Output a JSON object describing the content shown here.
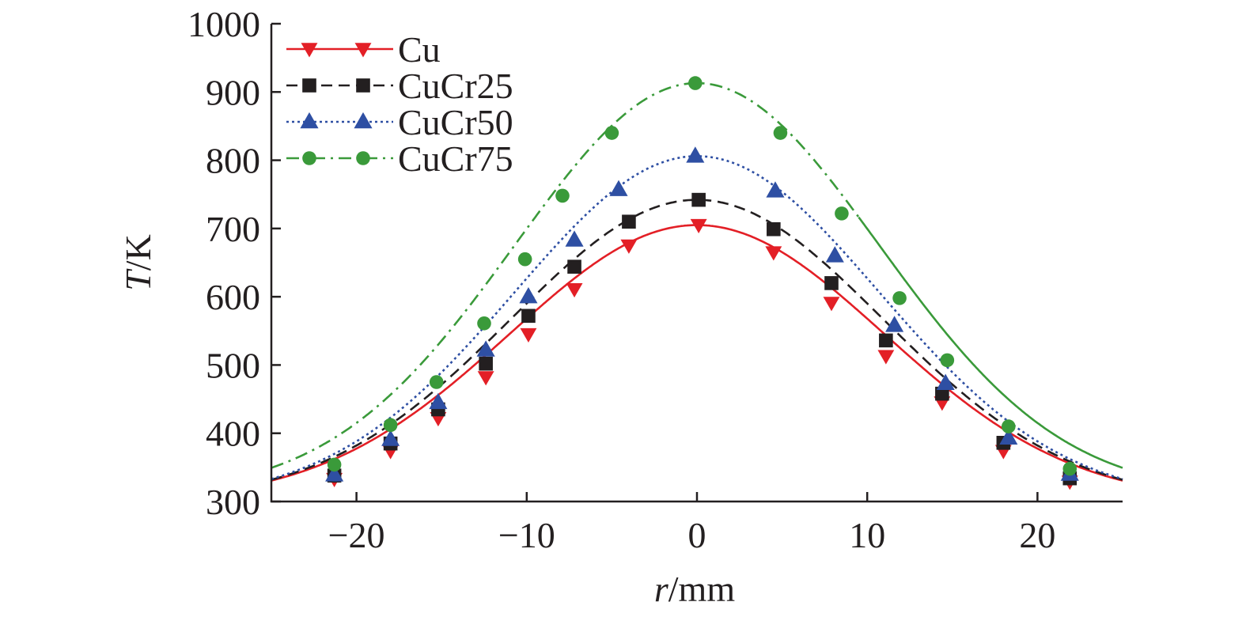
{
  "chart_data": {
    "type": "line",
    "xlabel": {
      "italic": "r",
      "rest": "/mm"
    },
    "ylabel": {
      "italic": "T",
      "rest": "/K"
    },
    "xlim": [
      -25,
      25
    ],
    "ylim": [
      300,
      1000
    ],
    "xticks": [
      -20,
      -10,
      0,
      10,
      20
    ],
    "xtick_labels": [
      "−20",
      "−10",
      "0",
      "10",
      "20"
    ],
    "yticks": [
      300,
      400,
      500,
      600,
      700,
      800,
      900,
      1000
    ],
    "ytick_labels": [
      "300",
      "400",
      "500",
      "600",
      "700",
      "800",
      "900",
      "1000"
    ],
    "grid": false,
    "legend_position": "top-left",
    "series": [
      {
        "name": "Cu",
        "color": "#e31f26",
        "line_style": "solid",
        "marker": "triangle-down",
        "peak": 705,
        "base": 300,
        "sigma": 11.0,
        "markers_x": [
          -21.3,
          -18.0,
          -15.2,
          -12.4,
          -9.9,
          -7.2,
          -4.0,
          0.1,
          4.5,
          7.9,
          11.1,
          14.4,
          18.0,
          21.9
        ],
        "markers_y": [
          333,
          374,
          422,
          482,
          545,
          611,
          675,
          705,
          665,
          591,
          513,
          445,
          374,
          329
        ]
      },
      {
        "name": "CuCr25",
        "color": "#231f20",
        "line_style": "dashed",
        "marker": "square",
        "peak": 742,
        "base": 300,
        "sigma": 10.9,
        "markers_x": [
          -21.3,
          -18.0,
          -15.2,
          -12.4,
          -9.9,
          -7.2,
          -4.0,
          0.1,
          4.5,
          7.9,
          11.1,
          14.4,
          18.0,
          21.9
        ],
        "markers_y": [
          338,
          385,
          435,
          502,
          572,
          644,
          710,
          742,
          699,
          620,
          536,
          458,
          386,
          334
        ]
      },
      {
        "name": "CuCr50",
        "color": "#2e4fa3",
        "line_style": "dotted",
        "marker": "triangle-up",
        "peak": 806,
        "base": 300,
        "sigma": 10.7,
        "markers_x": [
          -21.3,
          -18.0,
          -15.2,
          -12.4,
          -9.9,
          -7.2,
          -4.6,
          -0.1,
          4.6,
          8.1,
          11.6,
          14.6,
          18.3,
          21.9
        ],
        "markers_y": [
          339,
          391,
          445,
          522,
          600,
          683,
          757,
          806,
          755,
          660,
          558,
          473,
          393,
          340
        ]
      },
      {
        "name": "CuCr75",
        "color": "#3a9a3a",
        "line_style": "dash-dot",
        "right_line_style": "solid",
        "marker": "circle",
        "peak": 913,
        "base": 310,
        "sigma": 10.7,
        "markers_x": [
          -21.3,
          -18.0,
          -15.3,
          -12.5,
          -10.1,
          -7.9,
          -5.0,
          -0.1,
          4.9,
          8.5,
          11.9,
          14.7,
          18.3,
          21.9
        ],
        "markers_y": [
          354,
          412,
          475,
          561,
          655,
          748,
          840,
          913,
          840,
          722,
          598,
          507,
          410,
          348
        ]
      }
    ]
  }
}
